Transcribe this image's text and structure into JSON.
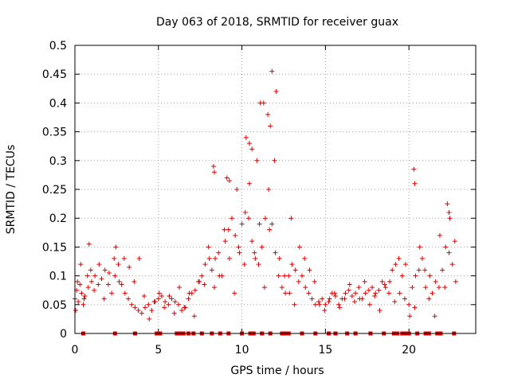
{
  "chart_data": {
    "type": "scatter",
    "title": "Day 063 of 2018, SRMTID for receiver guax",
    "xlabel": "GPS time / hours",
    "ylabel": "SRMTID / TECUs",
    "xlim": [
      0,
      24
    ],
    "ylim": [
      0,
      0.5
    ],
    "xticks": [
      0,
      5,
      10,
      15,
      20
    ],
    "xtick_labels": [
      "0",
      "5",
      "10",
      "15",
      "20"
    ],
    "yticks": [
      0,
      0.05,
      0.1,
      0.15,
      0.2,
      0.25,
      0.3,
      0.35,
      0.4,
      0.45,
      0.5
    ],
    "ytick_labels": [
      "0",
      "0.05",
      "0.1",
      "0.15",
      "0.2",
      "0.25",
      "0.3",
      "0.35",
      "0.4",
      "0.45",
      "0.5"
    ],
    "grid": true,
    "marker": "plus",
    "color": "#e00000",
    "series": [
      {
        "name": "SRMTID",
        "x": [
          0.0,
          0.1,
          0.2,
          0.3,
          0.4,
          0.5,
          0.6,
          0.8,
          1.0,
          1.2,
          1.4,
          1.6,
          1.8,
          2.0,
          2.2,
          2.4,
          2.6,
          2.8,
          3.0,
          3.2,
          3.4,
          3.6,
          3.8,
          4.0,
          4.2,
          4.4,
          4.6,
          4.8,
          5.0,
          5.2,
          5.4,
          5.6,
          5.8,
          6.0,
          6.2,
          6.4,
          6.6,
          6.8,
          7.0,
          7.2,
          7.4,
          7.6,
          7.8,
          8.0,
          8.2,
          8.4,
          8.6,
          8.8,
          9.0,
          9.2,
          9.4,
          9.6,
          9.8,
          10.0,
          10.2,
          10.4,
          10.6,
          10.8,
          11.0,
          11.2,
          11.4,
          11.6,
          11.8,
          12.0,
          12.2,
          12.4,
          12.6,
          12.8,
          13.0,
          13.2,
          13.4,
          13.6,
          13.8,
          14.0,
          14.2,
          14.4,
          14.6,
          14.8,
          15.0,
          15.2,
          15.4,
          15.6,
          15.8,
          16.0,
          16.2,
          16.4,
          16.6,
          16.8,
          17.0,
          17.2,
          17.4,
          17.6,
          17.8,
          18.0,
          18.2,
          18.4,
          18.6,
          18.8,
          19.0,
          19.2,
          19.4,
          19.6,
          19.8,
          20.0,
          20.2,
          20.4,
          20.6,
          20.8,
          21.0,
          21.2,
          21.4,
          21.6,
          21.8,
          22.0,
          22.2,
          22.4,
          22.6,
          22.8,
          0.05,
          0.15,
          0.35,
          0.55,
          0.75,
          0.95,
          1.15,
          1.45,
          1.75,
          2.05,
          2.35,
          2.65,
          2.95,
          3.25,
          3.55,
          3.85,
          4.15,
          4.45,
          4.75,
          5.05,
          5.35,
          5.65,
          5.95,
          6.25,
          6.55,
          6.85,
          7.15,
          7.45,
          7.75,
          8.05,
          8.35,
          8.65,
          8.95,
          9.25,
          9.55,
          9.85,
          10.15,
          10.45,
          10.75,
          11.05,
          11.35,
          11.65,
          11.95,
          12.25,
          12.55,
          12.85,
          13.15,
          13.45,
          13.75,
          14.05,
          14.35,
          14.65,
          14.95,
          15.25,
          15.55,
          15.85,
          16.15,
          16.45,
          16.75,
          17.05,
          17.35,
          17.65,
          17.95,
          18.25,
          18.55,
          18.85,
          19.15,
          19.45,
          19.75,
          20.05,
          20.35,
          20.65,
          20.95,
          21.25,
          21.55,
          21.85,
          22.15,
          22.45,
          22.75,
          8.3,
          8.35,
          9.1,
          9.25,
          9.7,
          10.25,
          10.45,
          10.6,
          10.9,
          11.1,
          11.3,
          11.55,
          11.7,
          11.8,
          12.05,
          20.3,
          20.35,
          22.3,
          22.4,
          12.95,
          0.85,
          2.45
        ],
        "y": [
          0.06,
          0.075,
          0.055,
          0.085,
          0.07,
          0.05,
          0.065,
          0.08,
          0.09,
          0.1,
          0.085,
          0.095,
          0.11,
          0.085,
          0.07,
          0.1,
          0.12,
          0.085,
          0.07,
          0.06,
          0.05,
          0.045,
          0.04,
          0.035,
          0.045,
          0.05,
          0.04,
          0.055,
          0.06,
          0.065,
          0.055,
          0.05,
          0.06,
          0.055,
          0.05,
          0.04,
          0.045,
          0.06,
          0.07,
          0.075,
          0.09,
          0.1,
          0.12,
          0.15,
          0.11,
          0.13,
          0.14,
          0.1,
          0.16,
          0.18,
          0.2,
          0.17,
          0.15,
          0.19,
          0.21,
          0.2,
          0.16,
          0.13,
          0.12,
          0.15,
          0.2,
          0.25,
          0.19,
          0.14,
          0.1,
          0.08,
          0.07,
          0.1,
          0.12,
          0.11,
          0.09,
          0.1,
          0.08,
          0.07,
          0.06,
          0.05,
          0.055,
          0.06,
          0.05,
          0.055,
          0.07,
          0.065,
          0.05,
          0.06,
          0.07,
          0.075,
          0.065,
          0.07,
          0.08,
          0.06,
          0.07,
          0.075,
          0.08,
          0.07,
          0.075,
          0.09,
          0.08,
          0.07,
          0.11,
          0.12,
          0.13,
          0.1,
          0.12,
          0.05,
          0.08,
          0.1,
          0.11,
          0.13,
          0.08,
          0.06,
          0.07,
          0.09,
          0.08,
          0.11,
          0.15,
          0.14,
          0.12,
          0.09,
          0.04,
          0.09,
          0.12,
          0.06,
          0.1,
          0.11,
          0.075,
          0.12,
          0.06,
          0.105,
          0.13,
          0.09,
          0.13,
          0.115,
          0.09,
          0.13,
          0.065,
          0.025,
          0.055,
          0.07,
          0.045,
          0.065,
          0.035,
          0.08,
          0.045,
          0.07,
          0.03,
          0.09,
          0.085,
          0.13,
          0.08,
          0.1,
          0.18,
          0.13,
          0.07,
          0.14,
          0.12,
          0.26,
          0.14,
          0.19,
          0.08,
          0.18,
          0.3,
          0.13,
          0.1,
          0.07,
          0.05,
          0.15,
          0.13,
          0.11,
          0.09,
          0.05,
          0.04,
          0.06,
          0.07,
          0.045,
          0.06,
          0.085,
          0.055,
          0.06,
          0.09,
          0.05,
          0.065,
          0.04,
          0.085,
          0.09,
          0.055,
          0.07,
          0.06,
          0.03,
          0.045,
          0.15,
          0.11,
          0.1,
          0.03,
          0.17,
          0.08,
          0.2,
          0.16,
          0.29,
          0.28,
          0.27,
          0.265,
          0.25,
          0.34,
          0.33,
          0.32,
          0.3,
          0.4,
          0.4,
          0.38,
          0.36,
          0.455,
          0.42,
          0.285,
          0.26,
          0.225,
          0.21,
          0.2,
          0.155,
          0.15
        ]
      }
    ],
    "baseline_markers": {
      "y": 0,
      "x": [
        0.5,
        2.4,
        3.6,
        4.9,
        5.1,
        6.1,
        6.3,
        6.5,
        6.8,
        7.1,
        7.6,
        8.2,
        8.7,
        9.2,
        10.0,
        10.5,
        10.7,
        11.2,
        11.7,
        12.4,
        12.6,
        12.8,
        13.6,
        14.4,
        15.2,
        15.6,
        16.3,
        16.8,
        17.7,
        18.5,
        19.1,
        19.3,
        19.6,
        19.8,
        20.0,
        20.5,
        21.0,
        21.2,
        21.7,
        21.9,
        22.7
      ]
    }
  }
}
